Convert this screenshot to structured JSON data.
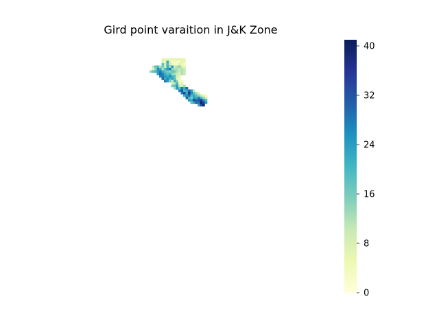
{
  "chart_data": {
    "type": "heatmap",
    "title": "Gird point varaition in J&K Zone",
    "xlabel": "",
    "ylabel": "",
    "axes_visible": false,
    "colormap": "YlGnBu",
    "colorbar": {
      "vmin": 0,
      "vmax": 41,
      "ticks": [
        0,
        8,
        16,
        24,
        32,
        40
      ],
      "placement": "right"
    },
    "grid": false,
    "legend": "none",
    "cells": [
      [
        31,
        0,
        6
      ],
      [
        32,
        0,
        6
      ],
      [
        33,
        0,
        6
      ],
      [
        34,
        0,
        6
      ],
      [
        35,
        0,
        6
      ],
      [
        36,
        0,
        6
      ],
      [
        37,
        0,
        6
      ],
      [
        38,
        0,
        6
      ],
      [
        39,
        0,
        6
      ],
      [
        40,
        0,
        6
      ],
      [
        31,
        1,
        8
      ],
      [
        32,
        1,
        5
      ],
      [
        33,
        1,
        22
      ],
      [
        34,
        1,
        8
      ],
      [
        35,
        1,
        2
      ],
      [
        36,
        1,
        4
      ],
      [
        37,
        1,
        3
      ],
      [
        38,
        1,
        2
      ],
      [
        39,
        1,
        7
      ],
      [
        40,
        1,
        5
      ],
      [
        31,
        2,
        18
      ],
      [
        32,
        2,
        9
      ],
      [
        33,
        2,
        20
      ],
      [
        34,
        2,
        10
      ],
      [
        35,
        2,
        4
      ],
      [
        36,
        2,
        3
      ],
      [
        37,
        2,
        2
      ],
      [
        38,
        2,
        8
      ],
      [
        39,
        2,
        5
      ],
      [
        40,
        2,
        3
      ],
      [
        27,
        3,
        10
      ],
      [
        28,
        3,
        18
      ],
      [
        29,
        3,
        20
      ],
      [
        30,
        3,
        12
      ],
      [
        31,
        3,
        16
      ],
      [
        32,
        3,
        9
      ],
      [
        33,
        3,
        21
      ],
      [
        34,
        3,
        14
      ],
      [
        35,
        3,
        24
      ],
      [
        36,
        3,
        10
      ],
      [
        37,
        3,
        12
      ],
      [
        38,
        3,
        14
      ],
      [
        39,
        3,
        8
      ],
      [
        40,
        3,
        6
      ],
      [
        27,
        4,
        8
      ],
      [
        28,
        4,
        14
      ],
      [
        29,
        4,
        26
      ],
      [
        30,
        4,
        22
      ],
      [
        31,
        4,
        12
      ],
      [
        32,
        4,
        19
      ],
      [
        33,
        4,
        24
      ],
      [
        34,
        4,
        28
      ],
      [
        35,
        4,
        14
      ],
      [
        36,
        4,
        12
      ],
      [
        37,
        4,
        12
      ],
      [
        38,
        4,
        10
      ],
      [
        39,
        4,
        12
      ],
      [
        40,
        4,
        10
      ],
      [
        28,
        5,
        20
      ],
      [
        29,
        5,
        24
      ],
      [
        30,
        5,
        28
      ],
      [
        31,
        5,
        22
      ],
      [
        32,
        5,
        18
      ],
      [
        33,
        5,
        16
      ],
      [
        34,
        5,
        14
      ],
      [
        35,
        5,
        18
      ],
      [
        36,
        5,
        16
      ],
      [
        37,
        5,
        12
      ],
      [
        38,
        5,
        10
      ],
      [
        39,
        5,
        12
      ],
      [
        40,
        5,
        10
      ],
      [
        29,
        6,
        24
      ],
      [
        30,
        6,
        30
      ],
      [
        31,
        6,
        26
      ],
      [
        32,
        6,
        22
      ],
      [
        33,
        6,
        18
      ],
      [
        34,
        6,
        20
      ],
      [
        35,
        6,
        14
      ],
      [
        36,
        6,
        12
      ],
      [
        37,
        6,
        10
      ],
      [
        38,
        6,
        8
      ],
      [
        39,
        6,
        12
      ],
      [
        40,
        6,
        10
      ],
      [
        30,
        7,
        26
      ],
      [
        31,
        7,
        28
      ],
      [
        32,
        7,
        24
      ],
      [
        33,
        7,
        22
      ],
      [
        34,
        7,
        26
      ],
      [
        35,
        7,
        20
      ],
      [
        36,
        7,
        18
      ],
      [
        37,
        7,
        8
      ],
      [
        38,
        7,
        6
      ],
      [
        31,
        8,
        30
      ],
      [
        32,
        8,
        22
      ],
      [
        33,
        8,
        26
      ],
      [
        34,
        8,
        20
      ],
      [
        35,
        8,
        24
      ],
      [
        36,
        8,
        18
      ],
      [
        37,
        8,
        6
      ],
      [
        38,
        8,
        4
      ],
      [
        32,
        9,
        28
      ],
      [
        33,
        9,
        24
      ],
      [
        34,
        9,
        16
      ],
      [
        35,
        9,
        10
      ],
      [
        36,
        9,
        22
      ],
      [
        37,
        9,
        14
      ],
      [
        38,
        9,
        2
      ],
      [
        39,
        9,
        2
      ],
      [
        35,
        10,
        8
      ],
      [
        36,
        10,
        12
      ],
      [
        37,
        10,
        20
      ],
      [
        38,
        10,
        4
      ],
      [
        39,
        10,
        6
      ],
      [
        35,
        11,
        16
      ],
      [
        36,
        11,
        18
      ],
      [
        37,
        11,
        24
      ],
      [
        38,
        11,
        10
      ],
      [
        39,
        11,
        8
      ],
      [
        40,
        11,
        12
      ],
      [
        36,
        12,
        12
      ],
      [
        37,
        12,
        24
      ],
      [
        38,
        12,
        18
      ],
      [
        39,
        12,
        28
      ],
      [
        40,
        12,
        22
      ],
      [
        41,
        12,
        30
      ],
      [
        38,
        13,
        26
      ],
      [
        39,
        13,
        32
      ],
      [
        40,
        13,
        20
      ],
      [
        41,
        13,
        22
      ],
      [
        42,
        13,
        30
      ],
      [
        43,
        13,
        24
      ],
      [
        44,
        13,
        10
      ],
      [
        39,
        14,
        28
      ],
      [
        40,
        14,
        34
      ],
      [
        41,
        14,
        22
      ],
      [
        42,
        14,
        36
      ],
      [
        43,
        14,
        26
      ],
      [
        44,
        14,
        18
      ],
      [
        45,
        14,
        12
      ],
      [
        46,
        14,
        6
      ],
      [
        40,
        15,
        22
      ],
      [
        41,
        15,
        26
      ],
      [
        42,
        15,
        30
      ],
      [
        43,
        15,
        20
      ],
      [
        44,
        15,
        22
      ],
      [
        45,
        15,
        18
      ],
      [
        46,
        15,
        14
      ],
      [
        47,
        15,
        10
      ],
      [
        48,
        15,
        6
      ],
      [
        49,
        15,
        4
      ],
      [
        41,
        16,
        30
      ],
      [
        42,
        16,
        20
      ],
      [
        43,
        16,
        16
      ],
      [
        44,
        16,
        24
      ],
      [
        45,
        16,
        22
      ],
      [
        46,
        16,
        28
      ],
      [
        47,
        16,
        20
      ],
      [
        48,
        16,
        14
      ],
      [
        49,
        16,
        8
      ],
      [
        42,
        17,
        24
      ],
      [
        43,
        17,
        22
      ],
      [
        44,
        17,
        34
      ],
      [
        45,
        17,
        30
      ],
      [
        46,
        17,
        32
      ],
      [
        47,
        17,
        36
      ],
      [
        48,
        17,
        26
      ],
      [
        49,
        17,
        20
      ],
      [
        43,
        18,
        18
      ],
      [
        44,
        18,
        22
      ],
      [
        45,
        18,
        30
      ],
      [
        46,
        18,
        28
      ],
      [
        47,
        18,
        40
      ],
      [
        48,
        18,
        34
      ],
      [
        49,
        18,
        24
      ],
      [
        46,
        19,
        22
      ],
      [
        47,
        19,
        34
      ],
      [
        48,
        19,
        38
      ],
      [
        26,
        5,
        14
      ],
      [
        27,
        5,
        18
      ]
    ]
  }
}
